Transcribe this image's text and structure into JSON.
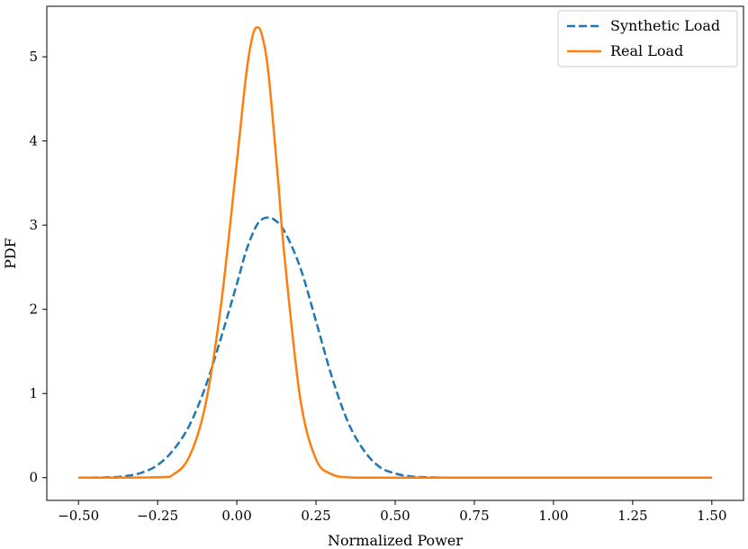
{
  "chart_data": {
    "type": "line",
    "title": "",
    "xlabel": "Normalized Power",
    "ylabel": "PDF",
    "xlim": [
      -0.6,
      1.6
    ],
    "ylim": [
      -0.27,
      5.6
    ],
    "xticks": [
      -0.5,
      -0.25,
      0.0,
      0.25,
      0.5,
      0.75,
      1.0,
      1.25,
      1.5
    ],
    "xtick_labels": [
      "−0.50",
      "−0.25",
      "0.00",
      "0.25",
      "0.50",
      "0.75",
      "1.00",
      "1.25",
      "1.50"
    ],
    "yticks": [
      0,
      1,
      2,
      3,
      4,
      5
    ],
    "ytick_labels": [
      "0",
      "1",
      "2",
      "3",
      "4",
      "5"
    ],
    "grid": false,
    "legend_position": "top-right",
    "series": [
      {
        "name": "Synthetic Load",
        "color": "#1f77b4",
        "style": "dashed",
        "x": [
          -0.5,
          -0.4,
          -0.35,
          -0.3,
          -0.25,
          -0.2,
          -0.15,
          -0.1,
          -0.05,
          0.0,
          0.03,
          0.06,
          0.08,
          0.1,
          0.12,
          0.15,
          0.2,
          0.25,
          0.3,
          0.35,
          0.4,
          0.45,
          0.5,
          0.55,
          0.6,
          0.7,
          1.0,
          1.5
        ],
        "y": [
          0.0,
          0.005,
          0.02,
          0.06,
          0.15,
          0.33,
          0.62,
          1.07,
          1.66,
          2.3,
          2.7,
          2.98,
          3.07,
          3.09,
          3.06,
          2.93,
          2.5,
          1.86,
          1.2,
          0.67,
          0.33,
          0.13,
          0.05,
          0.015,
          0.005,
          0.0,
          0.0,
          0.0
        ]
      },
      {
        "name": "Real Load",
        "color": "#ff7f0e",
        "style": "solid",
        "x": [
          -0.5,
          -0.25,
          -0.2,
          -0.15,
          -0.1,
          -0.05,
          0.0,
          0.03,
          0.05,
          0.065,
          0.08,
          0.1,
          0.13,
          0.15,
          0.2,
          0.25,
          0.3,
          0.35,
          0.4,
          0.5,
          0.75,
          1.0,
          1.5
        ],
        "y": [
          0.0,
          0.005,
          0.04,
          0.25,
          0.85,
          2.05,
          3.75,
          4.8,
          5.25,
          5.35,
          5.25,
          4.8,
          3.55,
          2.65,
          0.95,
          0.22,
          0.04,
          0.005,
          0.0,
          0.0,
          0.0,
          0.0,
          0.0
        ]
      }
    ]
  }
}
